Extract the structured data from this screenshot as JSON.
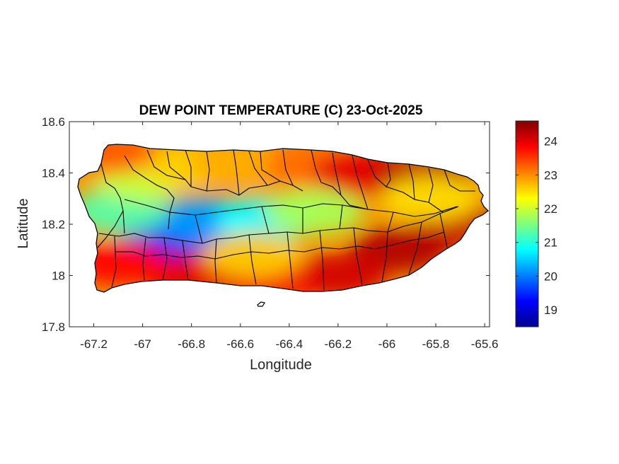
{
  "figure": {
    "title": "DEW POINT TEMPERATURE (C) 23-Oct-2025"
  },
  "chart_data": {
    "type": "heatmap",
    "title": "DEW POINT TEMPERATURE (C) 23-Oct-2025",
    "xlabel": "Longitude",
    "ylabel": "Latitude",
    "xlim": [
      -67.3,
      -65.58
    ],
    "ylim": [
      17.8,
      18.6
    ],
    "x_ticks": [
      -67.2,
      -67,
      -66.8,
      -66.6,
      -66.4,
      -66.2,
      -66,
      -65.8,
      -65.6
    ],
    "x_tick_labels": [
      "-67.2",
      "-67",
      "-66.8",
      "-66.6",
      "-66.4",
      "-66.2",
      "-66",
      "-65.8",
      "-65.6"
    ],
    "y_ticks": [
      17.8,
      18,
      18.2,
      18.4,
      18.6
    ],
    "y_tick_labels": [
      "17.8",
      "18",
      "18.2",
      "18.4",
      "18.6"
    ],
    "colorbar": {
      "min": 18.5,
      "max": 24.6,
      "ticks": [
        19,
        20,
        21,
        22,
        23,
        24
      ],
      "tick_labels": [
        "19",
        "20",
        "21",
        "22",
        "23",
        "24"
      ],
      "colormap": "jet"
    },
    "grid": false,
    "region": "Puerto Rico municipalities",
    "field_summary": [
      {
        "lon": -66.58,
        "lat": 18.17,
        "value": 19.0
      },
      {
        "lon": -66.9,
        "lat": 18.16,
        "value": 19.3
      },
      {
        "lon": -66.75,
        "lat": 18.22,
        "value": 20.2
      },
      {
        "lon": -66.5,
        "lat": 18.22,
        "value": 20.8
      },
      {
        "lon": -67.1,
        "lat": 18.25,
        "value": 21.3
      },
      {
        "lon": -66.3,
        "lat": 18.25,
        "value": 21.8
      },
      {
        "lon": -67.0,
        "lat": 18.38,
        "value": 22.0
      },
      {
        "lon": -66.8,
        "lat": 18.43,
        "value": 22.6
      },
      {
        "lon": -67.15,
        "lat": 18.48,
        "value": 23.3
      },
      {
        "lon": -66.6,
        "lat": 18.44,
        "value": 22.8
      },
      {
        "lon": -66.3,
        "lat": 18.43,
        "value": 23.2
      },
      {
        "lon": -66.1,
        "lat": 18.4,
        "value": 24.0
      },
      {
        "lon": -65.85,
        "lat": 18.38,
        "value": 24.3
      },
      {
        "lon": -65.7,
        "lat": 18.2,
        "value": 24.2
      },
      {
        "lon": -65.95,
        "lat": 18.1,
        "value": 24.3
      },
      {
        "lon": -66.2,
        "lat": 18.0,
        "value": 24.1
      },
      {
        "lon": -66.5,
        "lat": 17.98,
        "value": 23.9
      },
      {
        "lon": -66.8,
        "lat": 18.0,
        "value": 24.0
      },
      {
        "lon": -67.1,
        "lat": 18.05,
        "value": 23.8
      },
      {
        "lon": -66.55,
        "lat": 18.08,
        "value": 22.6
      },
      {
        "lon": -65.82,
        "lat": 18.3,
        "value": 22.5
      }
    ]
  }
}
